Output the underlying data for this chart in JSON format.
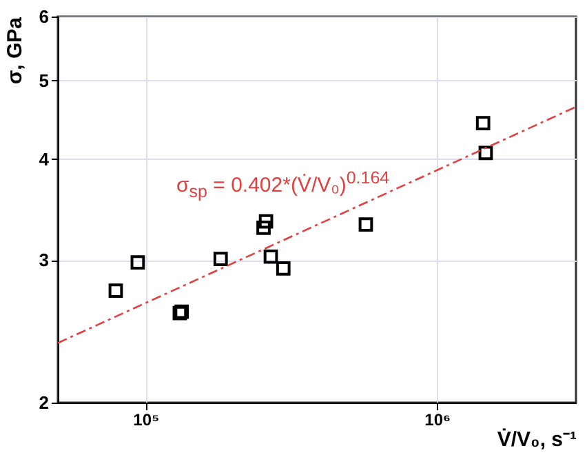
{
  "chart_data": {
    "type": "scatter",
    "xlabel": "V̇/V₀, s⁻¹",
    "ylabel": "σ, GPa",
    "annotations": [
      "σ$_{sp}$ = 0.402*(V̇/V₀)$^{0.164}$"
    ],
    "log": "xy",
    "grid": true,
    "xlim": [
      50000,
      3000000
    ],
    "xticks": [
      {
        "value": 100000,
        "label": "10⁵"
      },
      {
        "value": 1000000,
        "label": "10⁶"
      }
    ],
    "ylim": [
      2,
      6
    ],
    "yticks": [
      2,
      3,
      4,
      5,
      6
    ],
    "series": [
      {
        "marker": "square",
        "color": "#000000",
        "x": [
          79000,
          94000,
          131000,
          133000,
          181000,
          254000,
          259000,
          269000,
          297000,
          570000,
          1440000,
          1470000
        ],
        "values": [
          2.75,
          2.98,
          2.58,
          2.59,
          3.01,
          3.29,
          3.35,
          3.03,
          2.93,
          3.32,
          4.43,
          4.07
        ]
      },
      {
        "type": "line",
        "line_style": "dashed",
        "color": "#e04040",
        "x": [
          50000,
          3000000
        ],
        "values": [
          2.37,
          4.64
        ]
      }
    ]
  }
}
